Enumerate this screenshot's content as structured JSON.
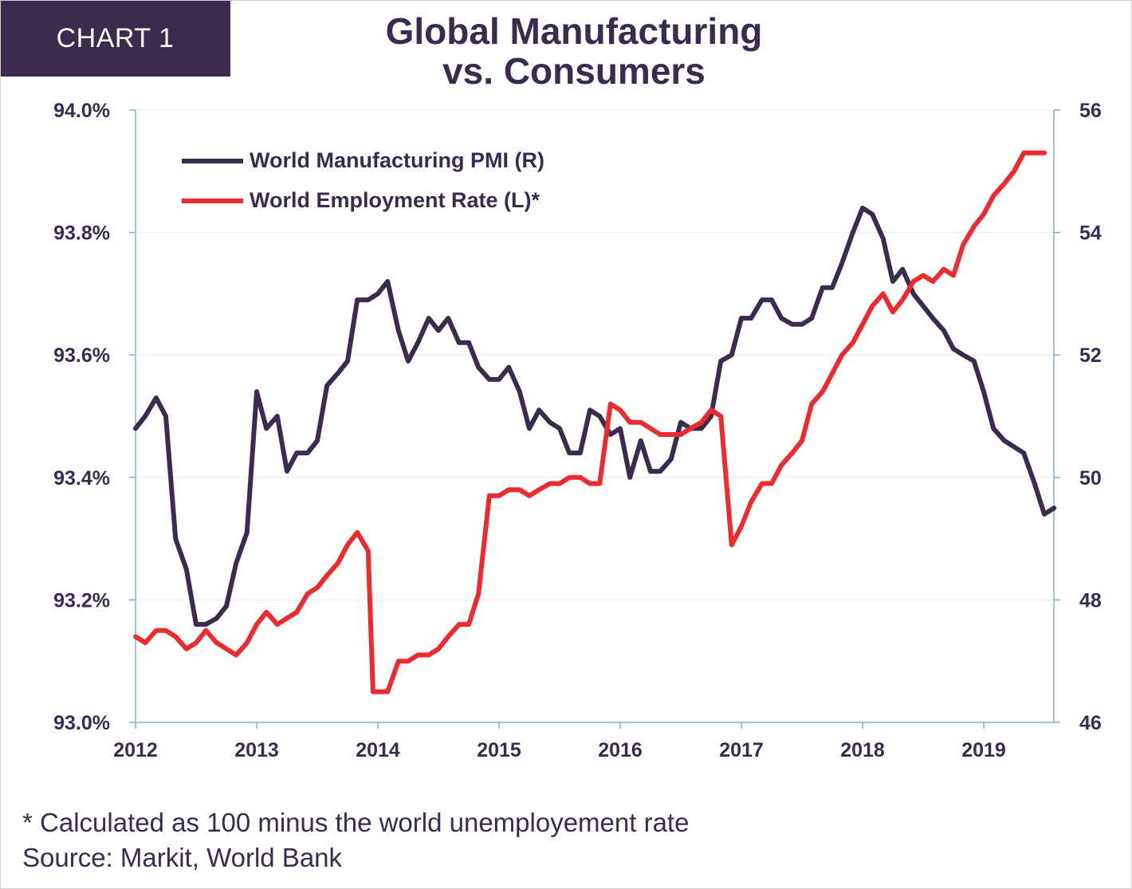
{
  "header": {
    "badge": "CHART 1",
    "title_line1": "Global Manufacturing",
    "title_line2": "vs. Consumers"
  },
  "footer": {
    "note": "* Calculated as 100 minus the world unemployement rate",
    "source": "Source: Markit, World Bank"
  },
  "colors": {
    "pmi": "#3a2b4f",
    "employment": "#ee2a2e",
    "axis": "#7fb3d5",
    "grid": "#e4eef5"
  },
  "chart_data": {
    "type": "line",
    "title": "Global Manufacturing vs. Consumers",
    "x_ticks": [
      "2012",
      "2013",
      "2014",
      "2015",
      "2016",
      "2017",
      "2018",
      "2019"
    ],
    "y_left": {
      "ticks": [
        "94.0%",
        "93.8%",
        "93.6%",
        "93.4%",
        "93.2%",
        "93.0%"
      ],
      "range": [
        93.0,
        94.0
      ]
    },
    "y_right": {
      "ticks": [
        "56",
        "54",
        "52",
        "50",
        "48",
        "46"
      ],
      "range": [
        46,
        56
      ]
    },
    "legend": {
      "position": "top-left"
    },
    "grid": true,
    "series": [
      {
        "name": "World Manufacturing PMI (R)",
        "axis": "right",
        "x": [
          2012.0,
          2012.08,
          2012.17,
          2012.25,
          2012.33,
          2012.42,
          2012.5,
          2012.58,
          2012.67,
          2012.75,
          2012.83,
          2012.92,
          2013.0,
          2013.08,
          2013.17,
          2013.25,
          2013.33,
          2013.42,
          2013.5,
          2013.58,
          2013.67,
          2013.75,
          2013.83,
          2013.92,
          2014.0,
          2014.08,
          2014.17,
          2014.25,
          2014.33,
          2014.42,
          2014.5,
          2014.58,
          2014.67,
          2014.75,
          2014.83,
          2014.92,
          2015.0,
          2015.08,
          2015.17,
          2015.25,
          2015.33,
          2015.42,
          2015.5,
          2015.58,
          2015.67,
          2015.75,
          2015.83,
          2015.92,
          2016.0,
          2016.08,
          2016.17,
          2016.25,
          2016.33,
          2016.42,
          2016.5,
          2016.58,
          2016.67,
          2016.75,
          2016.83,
          2016.92,
          2017.0,
          2017.08,
          2017.17,
          2017.25,
          2017.33,
          2017.42,
          2017.5,
          2017.58,
          2017.67,
          2017.75,
          2017.83,
          2017.92,
          2018.0,
          2018.08,
          2018.17,
          2018.25,
          2018.33,
          2018.42,
          2018.5,
          2018.58,
          2018.67,
          2018.75,
          2018.83,
          2018.92,
          2019.0,
          2019.08,
          2019.17,
          2019.25,
          2019.33,
          2019.42,
          2019.5,
          2019.58
        ],
        "values": [
          50.8,
          51.0,
          51.3,
          51.0,
          49.0,
          48.5,
          47.6,
          47.6,
          47.7,
          47.9,
          48.6,
          49.1,
          51.4,
          50.8,
          51.0,
          50.1,
          50.4,
          50.4,
          50.6,
          51.5,
          51.7,
          51.9,
          52.9,
          52.9,
          53.0,
          53.2,
          52.4,
          51.9,
          52.2,
          52.6,
          52.4,
          52.6,
          52.2,
          52.2,
          51.8,
          51.6,
          51.6,
          51.8,
          51.4,
          50.8,
          51.1,
          50.9,
          50.8,
          50.4,
          50.4,
          51.1,
          51.0,
          50.7,
          50.8,
          50.0,
          50.6,
          50.1,
          50.1,
          50.3,
          50.9,
          50.8,
          50.8,
          51.0,
          51.9,
          52.0,
          52.6,
          52.6,
          52.9,
          52.9,
          52.6,
          52.5,
          52.5,
          52.6,
          53.1,
          53.1,
          53.5,
          54.0,
          54.4,
          54.3,
          53.9,
          53.2,
          53.4,
          53.0,
          52.8,
          52.6,
          52.4,
          52.1,
          52.0,
          51.9,
          51.4,
          50.8,
          50.6,
          50.5,
          50.4,
          49.9,
          49.4,
          49.5
        ]
      },
      {
        "name": "World Employment Rate (L)*",
        "axis": "left",
        "x": [
          2012.0,
          2012.08,
          2012.17,
          2012.25,
          2012.33,
          2012.42,
          2012.5,
          2012.58,
          2012.67,
          2012.75,
          2012.83,
          2012.92,
          2013.0,
          2013.08,
          2013.17,
          2013.25,
          2013.33,
          2013.42,
          2013.5,
          2013.58,
          2013.67,
          2013.75,
          2013.83,
          2013.92,
          2013.96,
          2014.0,
          2014.08,
          2014.17,
          2014.25,
          2014.33,
          2014.42,
          2014.5,
          2014.58,
          2014.67,
          2014.75,
          2014.83,
          2014.92,
          2015.0,
          2015.08,
          2015.17,
          2015.25,
          2015.33,
          2015.42,
          2015.5,
          2015.58,
          2015.67,
          2015.75,
          2015.83,
          2015.92,
          2016.0,
          2016.08,
          2016.17,
          2016.25,
          2016.33,
          2016.42,
          2016.5,
          2016.58,
          2016.67,
          2016.75,
          2016.83,
          2016.92,
          2017.0,
          2017.08,
          2017.17,
          2017.25,
          2017.33,
          2017.42,
          2017.5,
          2017.58,
          2017.67,
          2017.75,
          2017.83,
          2017.92,
          2018.0,
          2018.08,
          2018.17,
          2018.25,
          2018.33,
          2018.42,
          2018.5,
          2018.58,
          2018.67,
          2018.75,
          2018.83,
          2018.92,
          2019.0,
          2019.08,
          2019.17,
          2019.25,
          2019.33,
          2019.42,
          2019.5
        ],
        "values": [
          93.14,
          93.13,
          93.15,
          93.15,
          93.14,
          93.12,
          93.13,
          93.15,
          93.13,
          93.12,
          93.11,
          93.13,
          93.16,
          93.18,
          93.16,
          93.17,
          93.18,
          93.21,
          93.22,
          93.24,
          93.26,
          93.29,
          93.31,
          93.28,
          93.05,
          93.05,
          93.05,
          93.1,
          93.1,
          93.11,
          93.11,
          93.12,
          93.14,
          93.16,
          93.16,
          93.21,
          93.37,
          93.37,
          93.38,
          93.38,
          93.37,
          93.38,
          93.39,
          93.39,
          93.4,
          93.4,
          93.39,
          93.39,
          93.52,
          93.51,
          93.49,
          93.49,
          93.48,
          93.47,
          93.47,
          93.47,
          93.48,
          93.49,
          93.51,
          93.5,
          93.29,
          93.32,
          93.36,
          93.39,
          93.39,
          93.42,
          93.44,
          93.46,
          93.52,
          93.54,
          93.57,
          93.6,
          93.62,
          93.65,
          93.68,
          93.7,
          93.67,
          93.69,
          93.72,
          93.73,
          93.72,
          93.74,
          93.73,
          93.78,
          93.81,
          93.83,
          93.86,
          93.88,
          93.9,
          93.93,
          93.93,
          93.93
        ]
      }
    ]
  }
}
